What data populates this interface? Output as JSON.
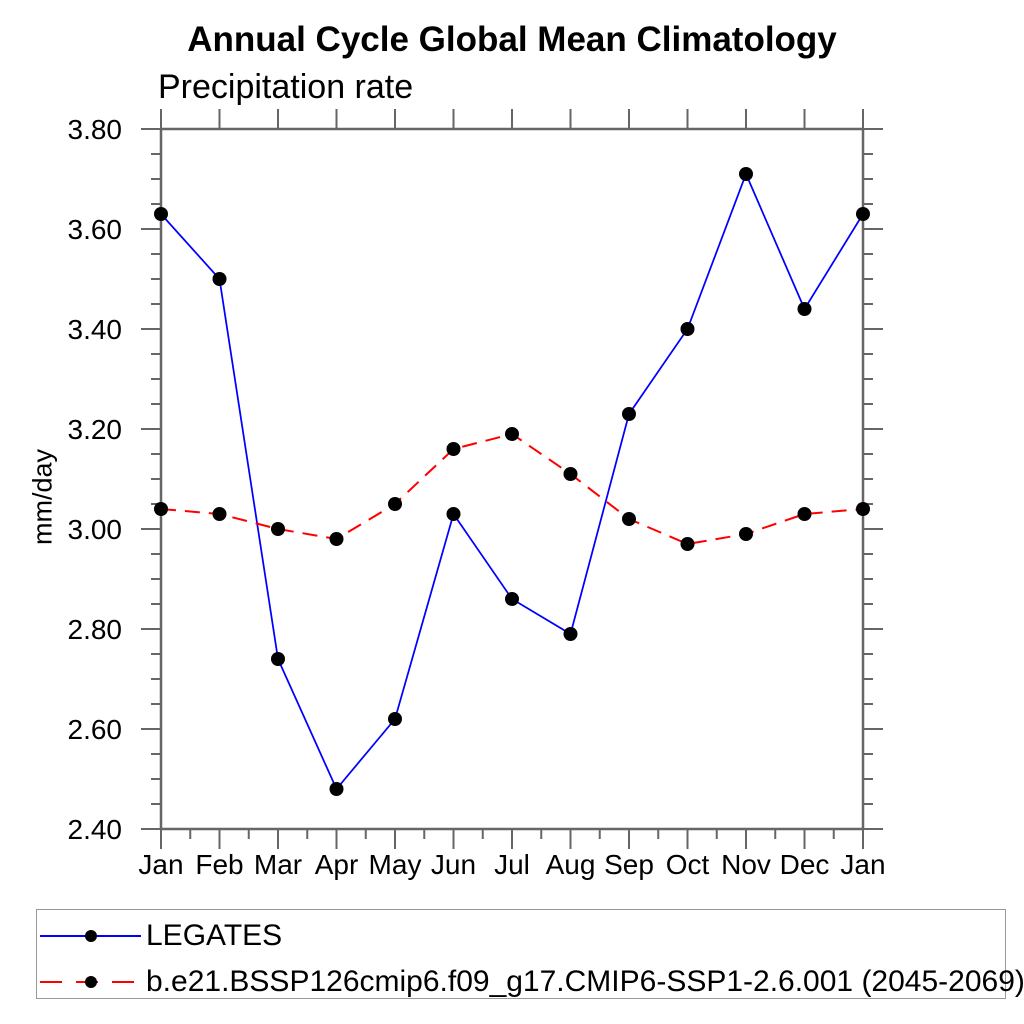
{
  "chart_data": {
    "type": "line",
    "title": "Annual Cycle Global Mean Climatology",
    "subtitle": "Precipitation rate",
    "ylabel": "mm/day",
    "x_categories": [
      "Jan",
      "Feb",
      "Mar",
      "Apr",
      "May",
      "Jun",
      "Jul",
      "Aug",
      "Sep",
      "Oct",
      "Nov",
      "Dec",
      "Jan"
    ],
    "ylim": [
      2.4,
      3.8
    ],
    "ytick_major_step": 0.2,
    "ytick_minor_step": 0.05,
    "ytick_labels": [
      "3.80",
      "3.60",
      "3.40",
      "3.20",
      "3.00",
      "2.80",
      "2.60",
      "2.40"
    ],
    "grid": false,
    "legend_position": "bottom-left-box",
    "series": [
      {
        "name": "LEGATES",
        "color": "#0000ff",
        "line_style": "solid",
        "marker": "filled-circle",
        "marker_color": "#000000",
        "values": [
          3.63,
          3.5,
          2.74,
          2.48,
          2.62,
          3.03,
          2.86,
          2.79,
          3.23,
          3.4,
          3.71,
          3.44,
          3.63
        ]
      },
      {
        "name": "b.e21.BSSP126cmip6.f09_g17.CMIP6-SSP1-2.6.001 (2045-2069)",
        "color": "#ff0000",
        "line_style": "dashed",
        "marker": "filled-circle",
        "marker_color": "#000000",
        "values": [
          3.04,
          3.03,
          3.0,
          2.98,
          3.05,
          3.16,
          3.19,
          3.11,
          3.02,
          2.97,
          2.99,
          3.03,
          3.04
        ]
      }
    ],
    "colors": {
      "axis": "#666666",
      "text": "#000000",
      "legend_border": "#999999",
      "background": "#ffffff"
    }
  }
}
